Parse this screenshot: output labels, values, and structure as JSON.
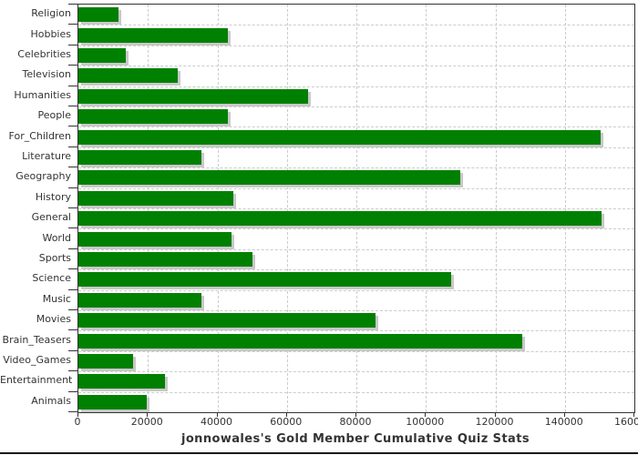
{
  "title": "jonnowales's Gold Member Cumulative Quiz Stats",
  "colors": {
    "bar": "#008000",
    "bar_shadow": "#c8c8c8",
    "gridline": "#cccccc",
    "plot_border": "#333333",
    "text": "#333333"
  },
  "chart_data": {
    "type": "bar",
    "orientation": "horizontal",
    "title": "jonnowales's Gold Member Cumulative Quiz Stats",
    "xlabel": "",
    "ylabel": "",
    "xlim": [
      0,
      160000
    ],
    "grid": true,
    "x_ticks": [
      0,
      20000,
      40000,
      60000,
      80000,
      100000,
      120000,
      140000,
      160000
    ],
    "x_tick_labels": [
      "0",
      "20000",
      "40000",
      "60000",
      "80000",
      "100000",
      "120000",
      "140000",
      "160000"
    ],
    "categories": [
      "Religion",
      "Hobbies",
      "Celebrities",
      "Television",
      "Humanities",
      "People",
      "For_Children",
      "Literature",
      "Geography",
      "History",
      "General",
      "World",
      "Sports",
      "Science",
      "Music",
      "Movies",
      "Brain_Teasers",
      "Video_Games",
      "Entertainment",
      "Animals"
    ],
    "values": [
      11500,
      43000,
      13700,
      28600,
      66000,
      43000,
      150200,
      35300,
      109800,
      44700,
      150500,
      44100,
      50200,
      107200,
      35300,
      85600,
      127800,
      15700,
      24800,
      19600
    ]
  }
}
